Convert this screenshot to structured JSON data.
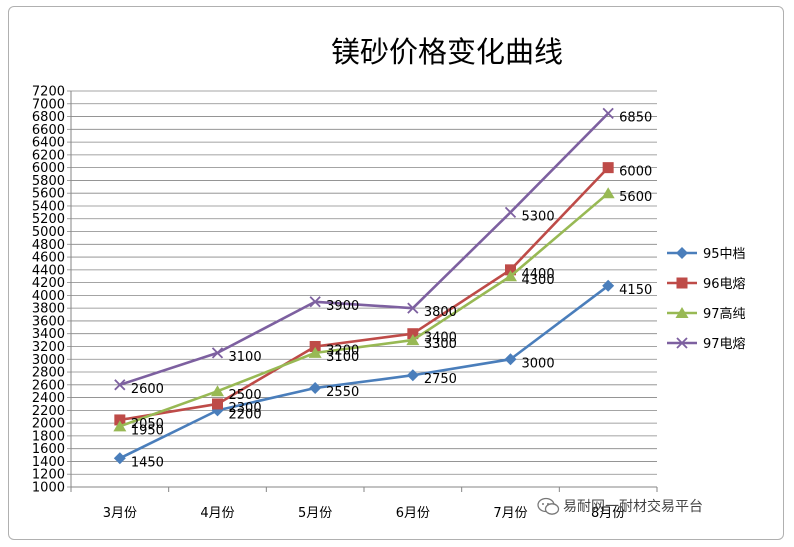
{
  "chart_data": {
    "type": "line",
    "title": "镁砂价格变化曲线",
    "categories": [
      "3月份",
      "4月份",
      "5月份",
      "6月份",
      "7月份",
      "8月份"
    ],
    "ylim": [
      1000,
      7200
    ],
    "ytick_step": 200,
    "grid": true,
    "legend_position": "right",
    "series": [
      {
        "name": "95中档",
        "color": "#4a7ebb",
        "marker": "diamond",
        "values": [
          1450,
          2200,
          2550,
          2750,
          3000,
          4150
        ]
      },
      {
        "name": "96电熔",
        "color": "#be4b48",
        "marker": "square",
        "values": [
          2050,
          2300,
          3200,
          3400,
          4400,
          6000
        ]
      },
      {
        "name": "97高纯",
        "color": "#98b954",
        "marker": "triangle",
        "values": [
          1950,
          2500,
          3100,
          3300,
          4300,
          5600
        ]
      },
      {
        "name": "97电熔",
        "color": "#7d60a0",
        "marker": "x",
        "values": [
          2600,
          3100,
          3900,
          3800,
          5300,
          6850
        ]
      }
    ]
  },
  "watermark": {
    "text": "易耐网一耐材交易平台",
    "icon": "wechat-icon"
  }
}
